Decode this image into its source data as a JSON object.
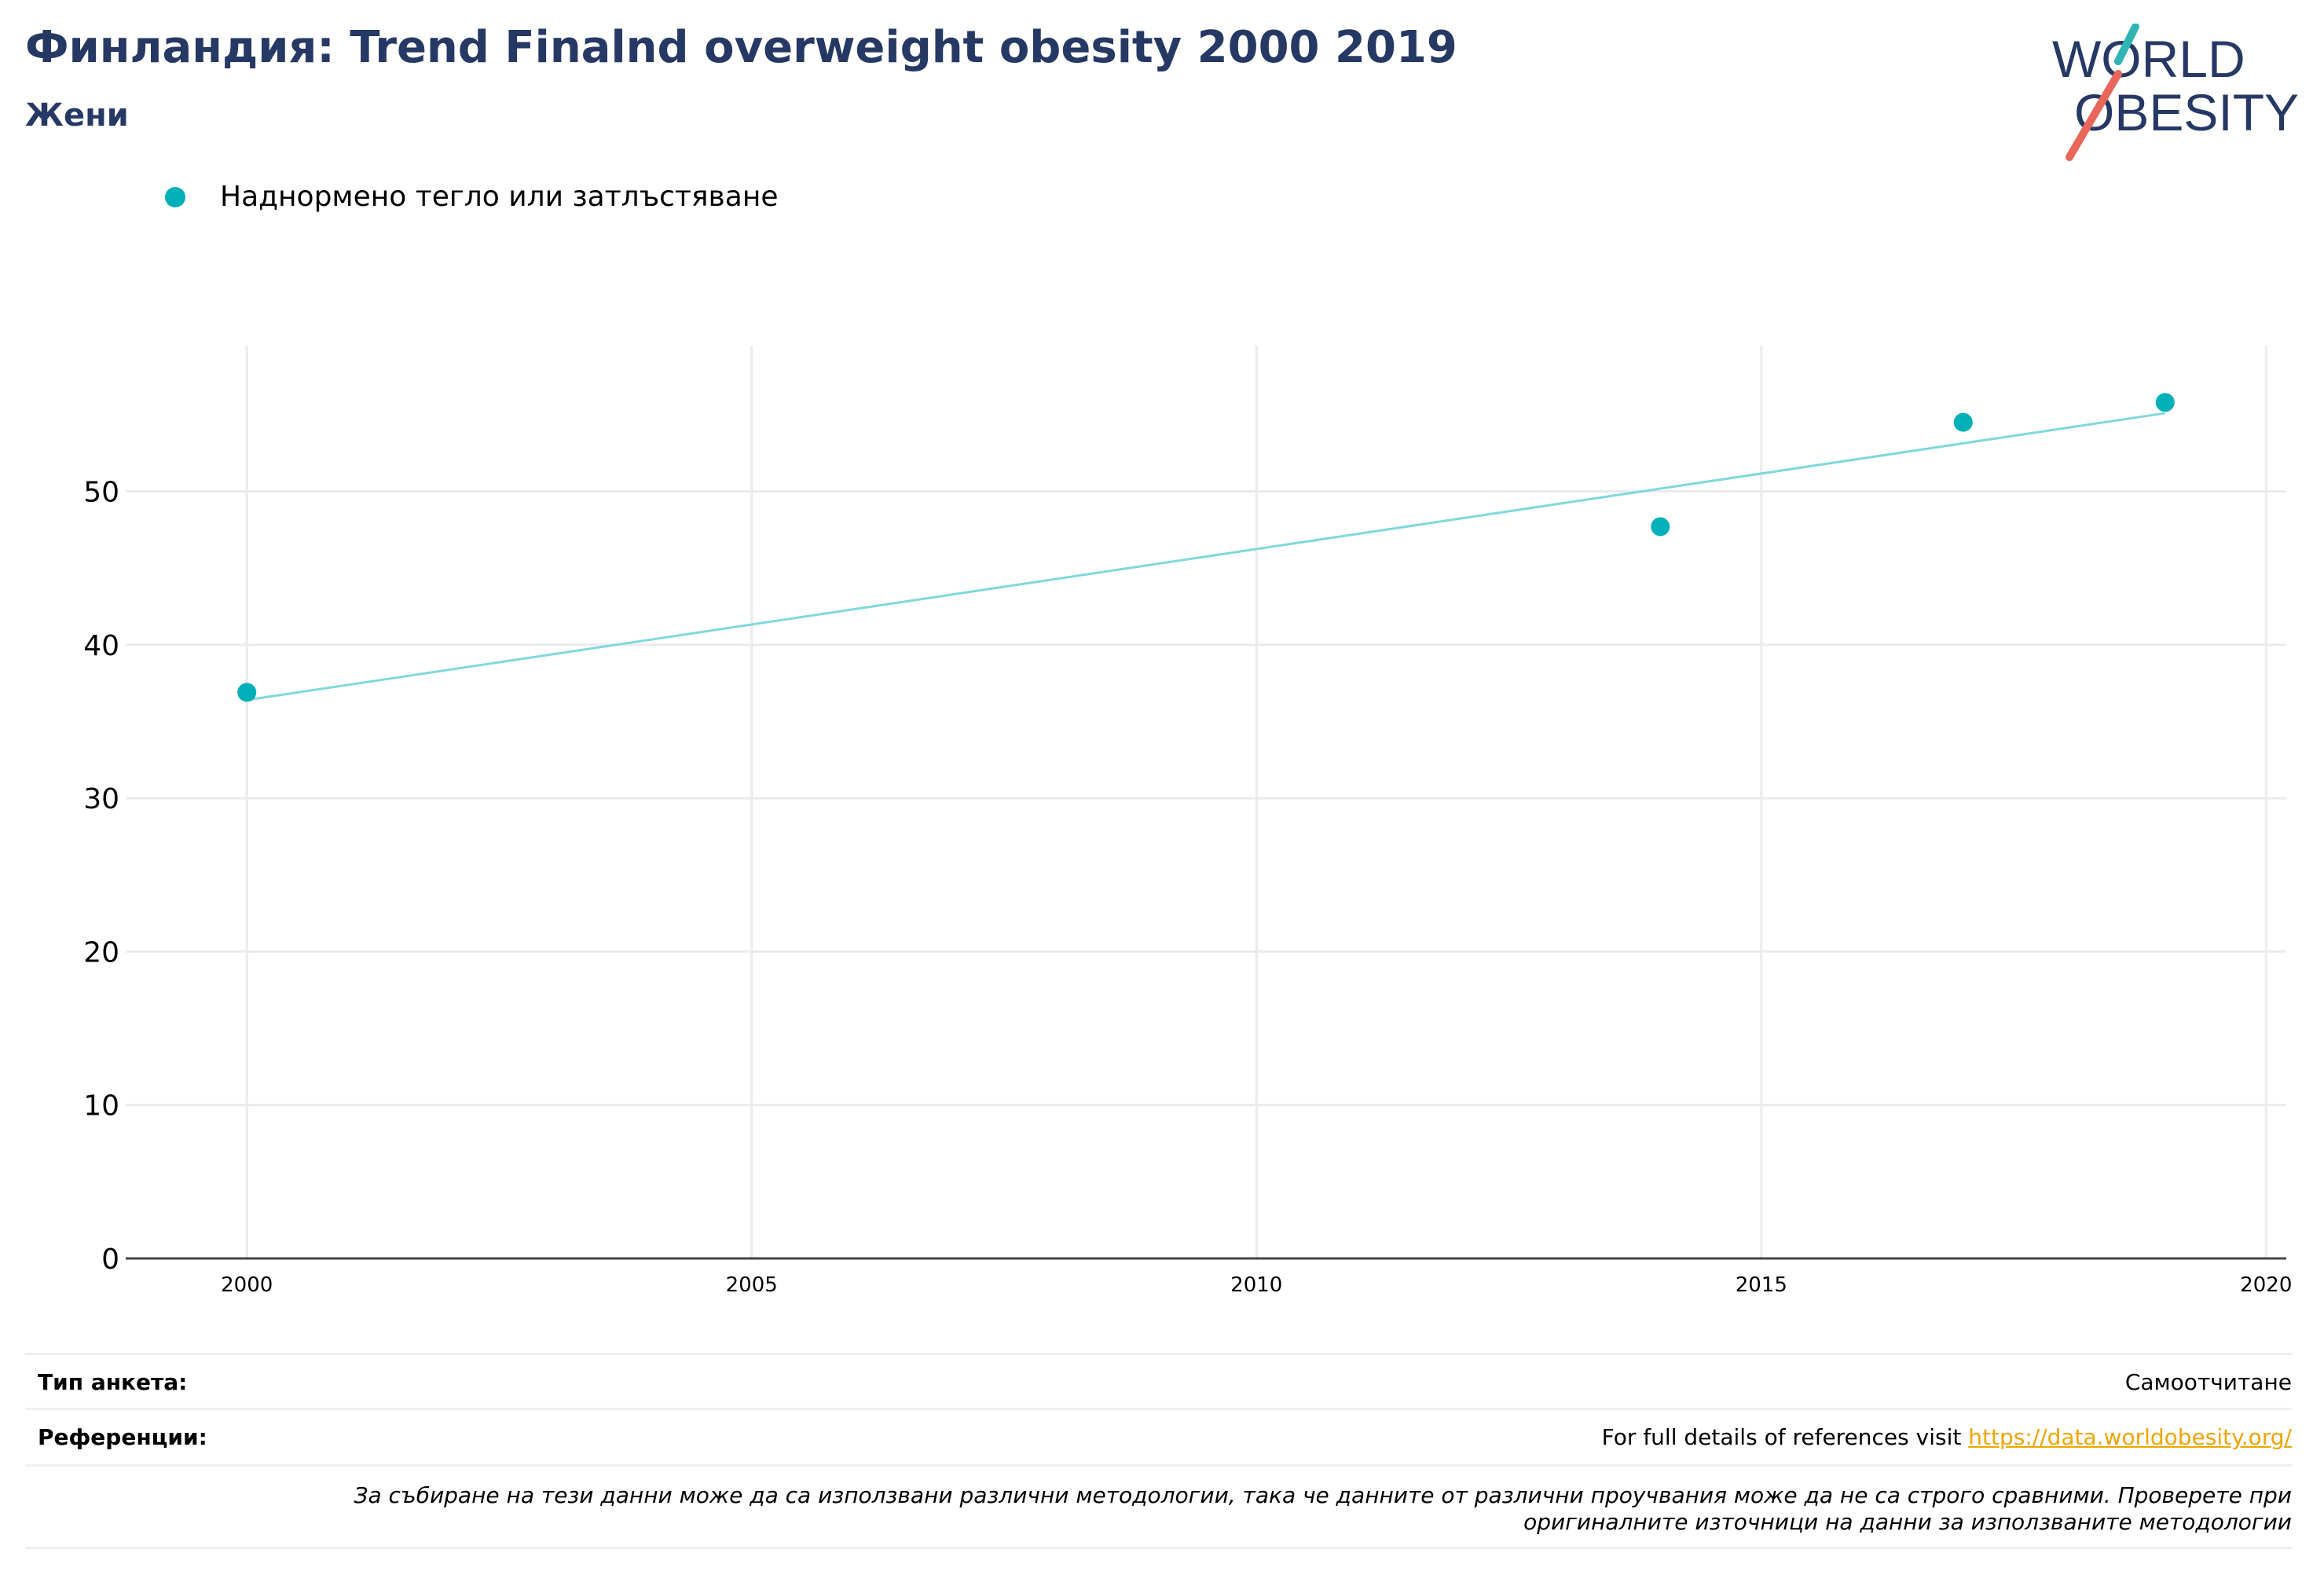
{
  "header": {
    "title": "Финландия: Trend Finalnd overweight obesity 2000 2019",
    "subtitle": "Жени"
  },
  "logo": {
    "line1": "WORLD",
    "line2": "OBESITY",
    "colors": {
      "text": "#263864",
      "slash_top": "#2fb5b6",
      "slash_bottom": "#e8675a"
    }
  },
  "legend": {
    "items": [
      {
        "label": "Наднормено тегло или затлъстяване",
        "color": "#00b0b9"
      }
    ]
  },
  "chart_data": {
    "type": "scatter",
    "series": [
      {
        "name": "Наднормено тегло или затлъстяване",
        "color": "#00b0b9",
        "points": [
          {
            "x": 2000,
            "y": 36.9
          },
          {
            "x": 2014,
            "y": 47.7
          },
          {
            "x": 2017,
            "y": 54.5
          },
          {
            "x": 2019,
            "y": 55.8
          }
        ]
      }
    ],
    "trendline": {
      "color": "#7fd8dc",
      "from": {
        "x": 2000,
        "y": 36.4
      },
      "to": {
        "x": 2019,
        "y": 55.1
      }
    },
    "xlim": [
      1998.8,
      2020.2
    ],
    "ylim": [
      0,
      59.5
    ],
    "x_ticks": [
      "2000",
      "2005",
      "2010",
      "2015",
      "2020"
    ],
    "y_ticks": [
      "0",
      "10",
      "20",
      "30",
      "40",
      "50"
    ],
    "grid": true,
    "legend_position": "top-left"
  },
  "footer": {
    "survey_type_label": "Тип анкета:",
    "survey_type_value": "Самоотчитане",
    "references_label": "Референции:",
    "references_text": "For full details of references visit ",
    "references_link": "https://data.worldobesity.org/",
    "note_line1": "За събиране на тези данни може да са използвани различни методологии, така че данните от различни проучвания може да не са строго сравними. Проверете при",
    "note_line2": "оригиналните източници на данни за използваните методологии"
  }
}
